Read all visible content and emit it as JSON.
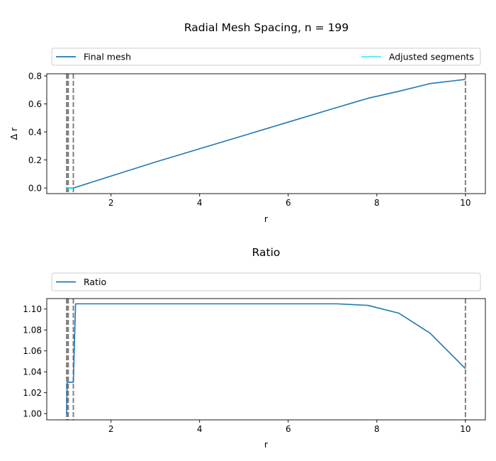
{
  "figure": {
    "suptitle": "Radial Mesh Spacing, n = 199"
  },
  "chart_data": [
    {
      "type": "line",
      "title": "",
      "xlabel": "r",
      "ylabel": "Δ r",
      "xlim": [
        0.55,
        10.45
      ],
      "ylim": [
        -0.04,
        0.815
      ],
      "xticks": [
        2,
        4,
        6,
        8,
        10
      ],
      "yticks": [
        0.0,
        0.2,
        0.4,
        0.6,
        0.8
      ],
      "xtick_labels": [
        "2",
        "4",
        "6",
        "8",
        "10"
      ],
      "ytick_labels": [
        "0.0",
        "0.2",
        "0.4",
        "0.6",
        "0.8"
      ],
      "grid": false,
      "legend": {
        "placement": "top, above axes, expanded",
        "entries": [
          {
            "label": "Final mesh",
            "color": "#1f77b4",
            "style": "solid"
          },
          {
            "label": "Adjusted segments",
            "color": "#00e5ff",
            "style": "solid"
          }
        ]
      },
      "series": [
        {
          "name": "Final mesh",
          "color": "#1f77b4",
          "x": [
            1.0,
            1.15,
            1.2,
            2.0,
            3.0,
            4.0,
            5.0,
            6.0,
            7.0,
            7.8,
            8.5,
            9.2,
            10.0
          ],
          "y": [
            0.0,
            0.0,
            0.005,
            0.085,
            0.185,
            0.28,
            0.375,
            0.47,
            0.565,
            0.64,
            0.69,
            0.745,
            0.775
          ]
        },
        {
          "name": "Adjusted segments",
          "color": "#00e5ff",
          "x": [
            1.0,
            1.15
          ],
          "y": [
            0.0,
            0.0
          ]
        }
      ],
      "vlines": [
        1.0,
        1.005,
        1.015,
        1.025,
        1.035,
        1.15,
        10.0
      ],
      "vline_color": "#808080"
    },
    {
      "type": "line",
      "title": "Ratio",
      "xlabel": "r",
      "ylabel": "",
      "xlim": [
        0.55,
        10.45
      ],
      "ylim": [
        0.994,
        1.11
      ],
      "xticks": [
        2,
        4,
        6,
        8,
        10
      ],
      "yticks": [
        1.0,
        1.02,
        1.04,
        1.06,
        1.08,
        1.1
      ],
      "xtick_labels": [
        "2",
        "4",
        "6",
        "8",
        "10"
      ],
      "ytick_labels": [
        "1.00",
        "1.02",
        "1.04",
        "1.06",
        "1.08",
        "1.10"
      ],
      "grid": false,
      "legend": {
        "placement": "top, above axes, expanded",
        "entries": [
          {
            "label": "Ratio",
            "color": "#1f77b4",
            "style": "solid"
          }
        ]
      },
      "series": [
        {
          "name": "Ratio",
          "color": "#1f77b4",
          "x": [
            1.0,
            1.01,
            1.03,
            1.15,
            1.2,
            2.0,
            4.0,
            6.0,
            7.1,
            7.8,
            8.5,
            9.2,
            10.0
          ],
          "y": [
            1.0,
            1.03,
            1.03,
            1.03,
            1.105,
            1.105,
            1.105,
            1.105,
            1.105,
            1.1035,
            1.096,
            1.077,
            1.043
          ]
        }
      ],
      "vlines": [
        1.0,
        1.005,
        1.015,
        1.025,
        1.035,
        1.15,
        10.0
      ],
      "vline_color": "#808080"
    }
  ]
}
